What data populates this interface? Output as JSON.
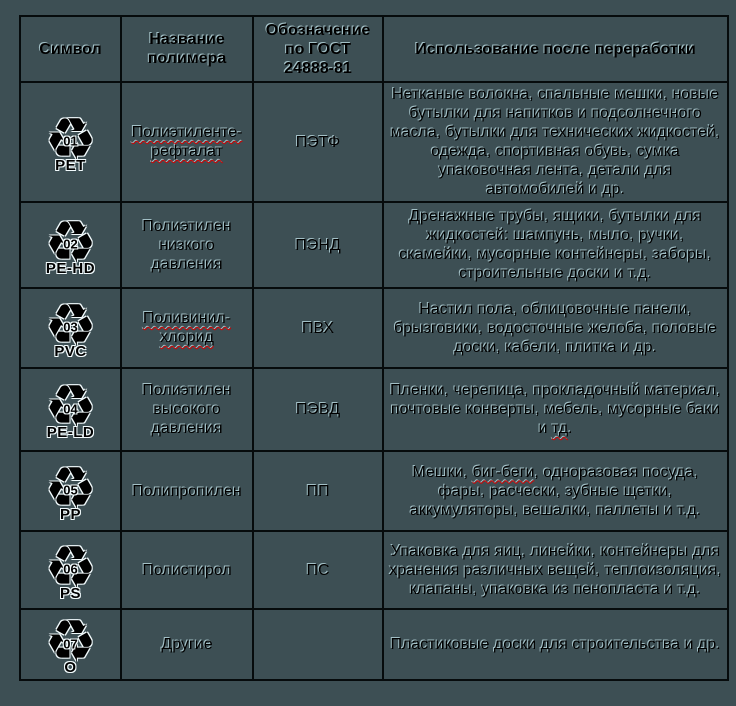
{
  "page": {
    "background_color": "#3d4f54",
    "border_color": "#060b0c",
    "text_color": "#000000",
    "emboss_highlight_color": "#c5e5ec",
    "spellcheck_squiggle_color": "#d40000",
    "icons": {
      "recycle_glyph": "♻"
    }
  },
  "table": {
    "headers": [
      {
        "label": "Символ"
      },
      {
        "label": "Название\nполимера"
      },
      {
        "label": "Обозначение\nпо ГОСТ\n24888-81"
      },
      {
        "label": "Использование после переработки"
      }
    ],
    "rows": [
      {
        "symbol": {
          "icon": "recycling-icon",
          "number": "01",
          "code": "PET"
        },
        "name": {
          "text": "Полиэтиленте-\nрефталат",
          "misspelled": true
        },
        "gost": "ПЭТФ",
        "usage": [
          {
            "text": "Нетканые волокна, спальные мешки, новые бутылки для напитков и подсолнечного масла, бутылки для технических жидкостей, одежда, спортивная обувь, сумка упаковочная лента, детали для автомобилей и др.",
            "wavy": false
          }
        ]
      },
      {
        "symbol": {
          "icon": "recycling-icon",
          "number": "02",
          "code": "PE-HD"
        },
        "name": {
          "text": "Полиэтилен\nнизкого\nдавления",
          "misspelled": false
        },
        "gost": "ПЭНД",
        "usage": [
          {
            "text": "Дренажные трубы, ящики, бутылки для жидкостей: шампунь, мыло, ручки, скамейки, мусорные контейнеры, заборы, строительные доски и т.д.",
            "wavy": false
          }
        ]
      },
      {
        "symbol": {
          "icon": "recycling-icon",
          "number": "03",
          "code": "PVC"
        },
        "name": {
          "text": "Поливинил-\nхлорид",
          "misspelled": true
        },
        "gost": "ПВХ",
        "usage": [
          {
            "text": "Настил пола, облицовочные панели, брызговики, водосточные желоба, половые доски, кабели, плитка и др.",
            "wavy": false
          }
        ]
      },
      {
        "symbol": {
          "icon": "recycling-icon",
          "number": "04",
          "code": "PE-LD"
        },
        "name": {
          "text": "Полиэтилен\nвысокого\nдавления",
          "misspelled": false
        },
        "gost": "ПЭВД",
        "usage": [
          {
            "text": "Пленки, черепица, прокладочный материал, почтовые конверты, мебель, мусорные баки и ",
            "wavy": false
          },
          {
            "text": "тд",
            "wavy": true
          },
          {
            "text": ".",
            "wavy": false
          }
        ]
      },
      {
        "symbol": {
          "icon": "recycling-icon",
          "number": "05",
          "code": "PP"
        },
        "name": {
          "text": "Полипропилен",
          "misspelled": false
        },
        "gost": "ПП",
        "usage": [
          {
            "text": "Мешки, ",
            "wavy": false
          },
          {
            "text": "биг-беги",
            "wavy": true
          },
          {
            "text": ", одноразовая посуда, фары, расчески, зубные щетки, аккумуляторы, вешалки, паллеты и т.д.",
            "wavy": false
          }
        ]
      },
      {
        "symbol": {
          "icon": "recycling-icon",
          "number": "06",
          "code": "PS"
        },
        "name": {
          "text": "Полистирол",
          "misspelled": false
        },
        "gost": "ПС",
        "usage": [
          {
            "text": "Упаковка для яиц, линейки, контейнеры для хранения различных вещей, теплоизоляция, клапаны, упаковка из пенопласта и т.д.",
            "wavy": false
          }
        ]
      },
      {
        "symbol": {
          "icon": "recycling-icon",
          "number": "07",
          "code": "O"
        },
        "name": {
          "text": "Другие",
          "misspelled": false
        },
        "gost": "",
        "usage": [
          {
            "text": "Пластиковые доски для строительства и др.",
            "wavy": false
          }
        ]
      }
    ]
  }
}
